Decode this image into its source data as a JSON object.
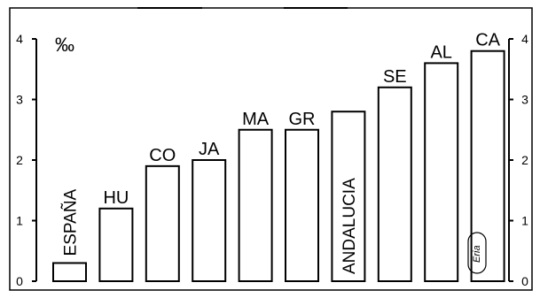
{
  "chart_data": {
    "type": "bar",
    "unit_label": "‰",
    "categories": [
      "ESPAÑA",
      "HU",
      "CO",
      "JA",
      "MA",
      "GR",
      "ANDALUCIA",
      "SE",
      "AL",
      "CA"
    ],
    "values": [
      0.3,
      1.2,
      1.9,
      2.0,
      2.5,
      2.5,
      2.8,
      3.2,
      3.6,
      3.8
    ],
    "ylim": [
      0,
      4
    ],
    "yticks": [
      "0",
      "1",
      "2",
      "3",
      "4"
    ],
    "label_inside": [
      "ESPAÑA",
      "ANDALUCIA"
    ],
    "grid": false,
    "title": "",
    "xlabel": "",
    "ylabel": "",
    "watermark": "Eria"
  }
}
